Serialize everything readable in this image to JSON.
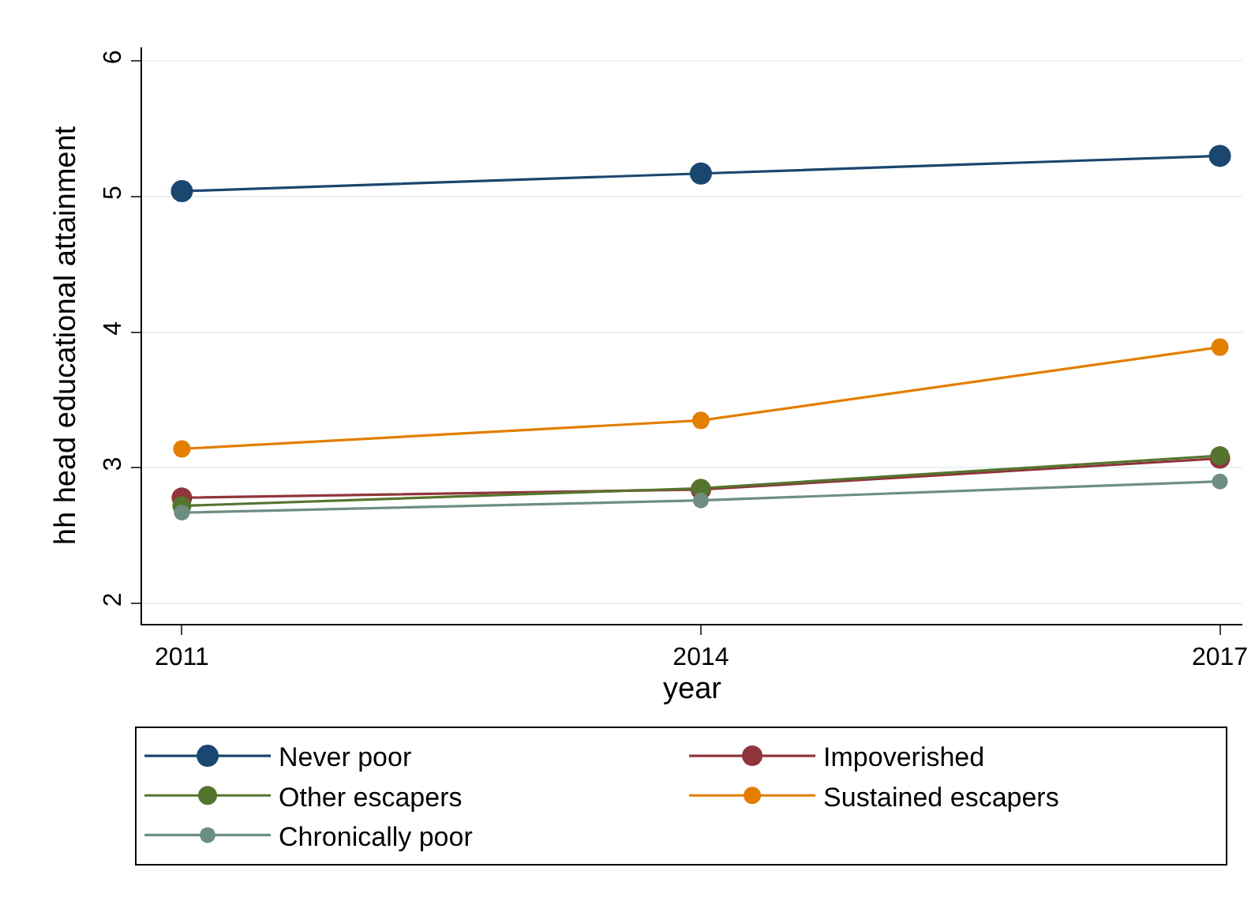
{
  "chart_data": {
    "type": "line",
    "xlabel": "year",
    "ylabel": "hh head educational attainment",
    "x": [
      2011,
      2014,
      2017
    ],
    "xlim": [
      2010.77,
      2017.13
    ],
    "xticks": [
      2011,
      2014,
      2017
    ],
    "ylim": [
      1.85,
      6.1
    ],
    "yticks": [
      2,
      3,
      4,
      5,
      6
    ],
    "grid": "y",
    "legend": "bottom",
    "marker": "circle",
    "line_style": "solid",
    "series": [
      {
        "name": "Never poor",
        "color": "#1a476f",
        "values": [
          5.04,
          5.17,
          5.3
        ]
      },
      {
        "name": "Impoverished",
        "color": "#90353b",
        "values": [
          2.78,
          2.84,
          3.07
        ]
      },
      {
        "name": "Other escapers",
        "color": "#55752f",
        "values": [
          2.72,
          2.85,
          3.09
        ]
      },
      {
        "name": "Sustained escapers",
        "color": "#e37e00",
        "values": [
          3.14,
          3.35,
          3.89
        ]
      },
      {
        "name": "Chronically poor",
        "color": "#6e8e84",
        "values": [
          2.67,
          2.76,
          2.9
        ]
      }
    ]
  }
}
